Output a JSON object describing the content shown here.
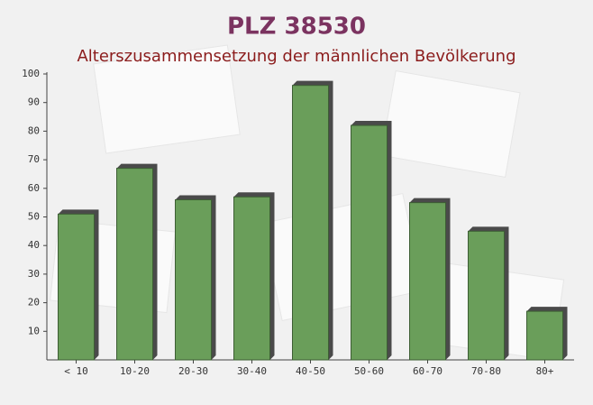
{
  "chart_data": {
    "type": "bar",
    "title": "PLZ 38530",
    "subtitle": "Alterszusammensetzung der männlichen Bevölkerung",
    "categories": [
      "< 10",
      "10-20",
      "20-30",
      "30-40",
      "40-50",
      "50-60",
      "60-70",
      "70-80",
      "80+"
    ],
    "values": [
      51,
      67,
      56,
      57,
      96,
      82,
      55,
      45,
      17
    ],
    "color": "#6a9e5a",
    "ylim": [
      0,
      100
    ],
    "yticks": [
      10,
      20,
      30,
      40,
      50,
      60,
      70,
      80,
      90,
      100
    ],
    "grid": false
  }
}
